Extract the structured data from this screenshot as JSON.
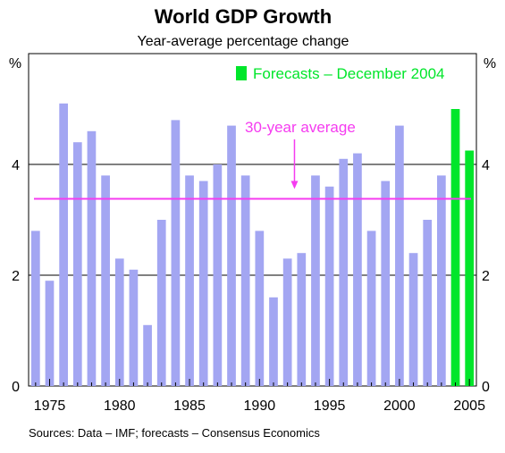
{
  "chart_data": {
    "type": "bar",
    "title": "World GDP Growth",
    "subtitle": "Year-average percentage change",
    "ylabel_left": "%",
    "ylabel_right": "%",
    "ylim": [
      0,
      6
    ],
    "yticks": [
      0,
      2,
      4
    ],
    "grid": "horizontal",
    "xlim": [
      1973.5,
      2005.5
    ],
    "xtick_labels": [
      "1975",
      "1980",
      "1985",
      "1990",
      "1995",
      "2000",
      "2005"
    ],
    "source": "Sources: Data – IMF; forecasts – Consensus Economics",
    "categories": [
      1974,
      1975,
      1976,
      1977,
      1978,
      1979,
      1980,
      1981,
      1982,
      1983,
      1984,
      1985,
      1986,
      1987,
      1988,
      1989,
      1990,
      1991,
      1992,
      1993,
      1994,
      1995,
      1996,
      1997,
      1998,
      1999,
      2000,
      2001,
      2002,
      2003,
      2004,
      2005
    ],
    "series": [
      {
        "color": "#a3a6f2",
        "values": [
          2.8,
          1.9,
          5.1,
          4.4,
          4.6,
          3.8,
          2.3,
          2.1,
          1.1,
          3.0,
          4.8,
          3.8,
          3.7,
          4.0,
          4.7,
          3.8,
          2.8,
          1.6,
          2.3,
          2.4,
          3.8,
          3.6,
          4.1,
          4.2,
          2.8,
          3.7,
          4.7,
          2.4,
          3.0,
          3.8,
          null,
          null
        ]
      },
      {
        "name": "Forecasts – December 2004",
        "color": "#00e62a",
        "values": [
          null,
          null,
          null,
          null,
          null,
          null,
          null,
          null,
          null,
          null,
          null,
          null,
          null,
          null,
          null,
          null,
          null,
          null,
          null,
          null,
          null,
          null,
          null,
          null,
          null,
          null,
          null,
          null,
          null,
          null,
          5.0,
          4.25
        ]
      }
    ],
    "reference_line": {
      "label": "30-year average",
      "value": 3.38,
      "color": "#f53cf0"
    },
    "legend": {
      "placement": "top-right"
    }
  }
}
